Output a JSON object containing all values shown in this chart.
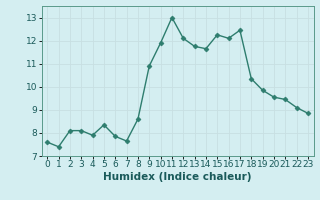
{
  "x": [
    0,
    1,
    2,
    3,
    4,
    5,
    6,
    7,
    8,
    9,
    10,
    11,
    12,
    13,
    14,
    15,
    16,
    17,
    18,
    19,
    20,
    21,
    22,
    23
  ],
  "y": [
    7.6,
    7.4,
    8.1,
    8.1,
    7.9,
    8.35,
    7.85,
    7.65,
    8.6,
    10.9,
    11.9,
    13.0,
    12.1,
    11.75,
    11.65,
    12.25,
    12.1,
    12.45,
    10.35,
    9.85,
    9.55,
    9.45,
    9.1,
    8.85
  ],
  "line_color": "#2e7d6e",
  "marker": "D",
  "marker_size": 2.5,
  "bg_color": "#d4eef1",
  "grid_color": "#c8dfe2",
  "xlabel": "Humidex (Indice chaleur)",
  "ylim": [
    7,
    13.5
  ],
  "xlim": [
    -0.5,
    23.5
  ],
  "yticks": [
    7,
    8,
    9,
    10,
    11,
    12,
    13
  ],
  "xticks": [
    0,
    1,
    2,
    3,
    4,
    5,
    6,
    7,
    8,
    9,
    10,
    11,
    12,
    13,
    14,
    15,
    16,
    17,
    18,
    19,
    20,
    21,
    22,
    23
  ],
  "tick_fontsize": 6.5,
  "xlabel_fontsize": 7.5,
  "line_width": 1.0
}
